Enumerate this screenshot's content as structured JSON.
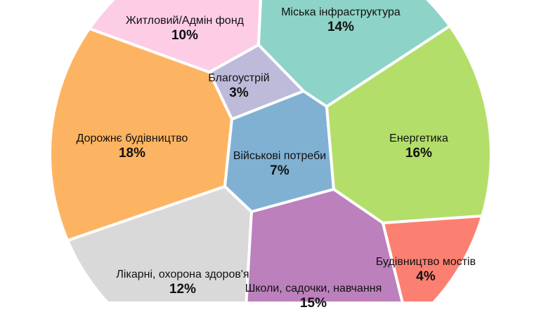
{
  "chart_data": {
    "type": "voronoi-treemap",
    "cells": [
      {
        "name": "Житловий/Адмін фонд",
        "label": "10%",
        "value": 10,
        "color": "#fccde5"
      },
      {
        "name": "Міська інфраструктура",
        "label": "14%",
        "value": 14,
        "color": "#8dd3c7"
      },
      {
        "name": "Благоустрій",
        "label": "3%",
        "value": 3,
        "color": "#bebada"
      },
      {
        "name": "Дорожнє будівництво",
        "label": "18%",
        "value": 18,
        "color": "#fdb462"
      },
      {
        "name": "Військові потреби",
        "label": "7%",
        "value": 7,
        "color": "#80b1d3"
      },
      {
        "name": "Енергетика",
        "label": "16%",
        "value": 16,
        "color": "#b3de69"
      },
      {
        "name": "Лікарні, охорона здоров'я",
        "label": "12%",
        "value": 12,
        "color": "#d9d9d9"
      },
      {
        "name": "Школи, садочки, навчання",
        "label": "15%",
        "value": 15,
        "color": "#bc80bd"
      },
      {
        "name": "Будівництво мостів",
        "label": "4%",
        "value": 4,
        "color": "#fb8072"
      }
    ]
  }
}
